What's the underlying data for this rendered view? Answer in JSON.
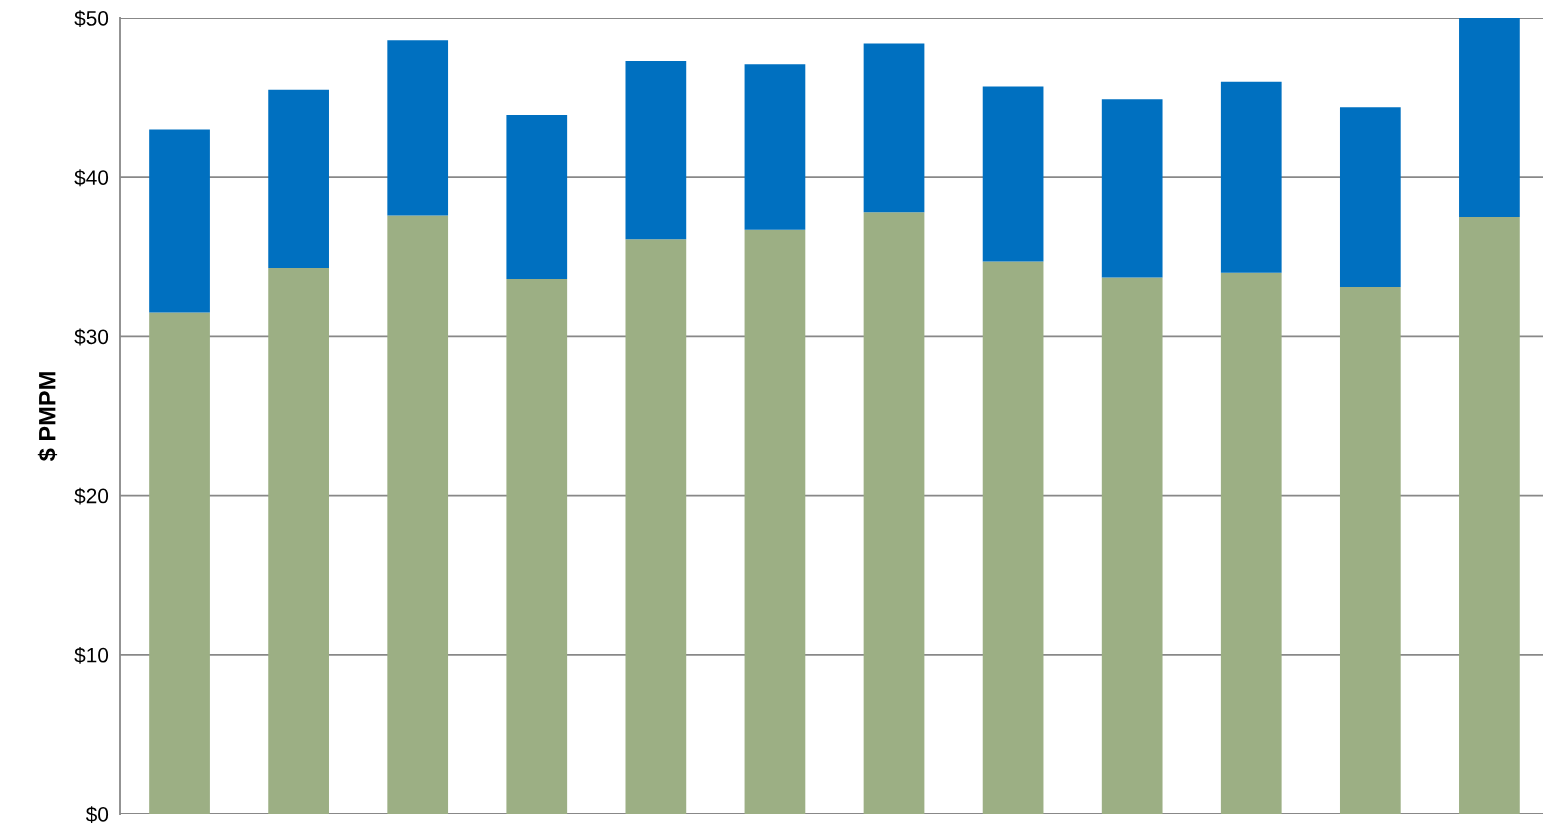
{
  "chart_data": {
    "type": "bar",
    "stacked": true,
    "ylabel": "$ PMPM",
    "categories": [
      null,
      null,
      null,
      null,
      null,
      null,
      null,
      null,
      null,
      null,
      null,
      null
    ],
    "series": [
      {
        "color": "#9caf84",
        "values": [
          31.5,
          34.3,
          37.6,
          33.6,
          36.1,
          36.7,
          37.8,
          34.7,
          33.7,
          34.0,
          33.1,
          37.5
        ]
      },
      {
        "color": "#0070c0",
        "values": [
          11.5,
          11.2,
          11.0,
          10.3,
          11.2,
          10.4,
          10.6,
          11.0,
          11.2,
          12.0,
          11.3,
          12.5
        ]
      }
    ],
    "ylim": [
      0,
      50
    ],
    "yticks": [
      {
        "value": 0,
        "label": "$0"
      },
      {
        "value": 10,
        "label": "$10"
      },
      {
        "value": 20,
        "label": "$20"
      },
      {
        "value": 30,
        "label": "$30"
      },
      {
        "value": 40,
        "label": "$40"
      },
      {
        "value": 50,
        "label": "$50"
      }
    ],
    "grid": "y"
  }
}
